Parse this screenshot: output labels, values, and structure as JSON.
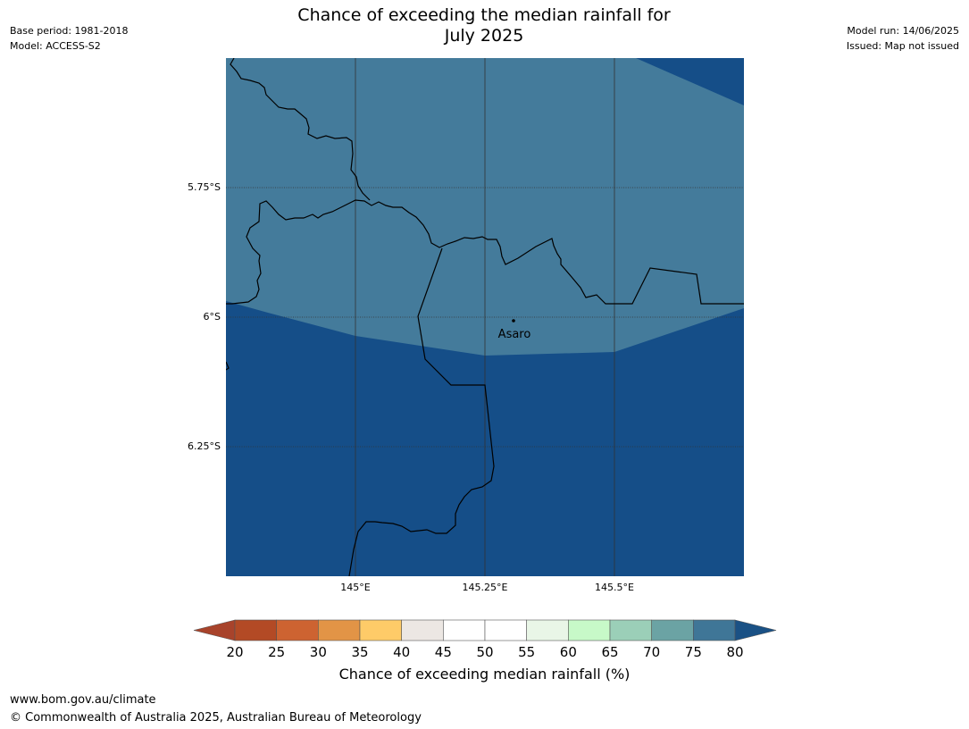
{
  "header": {
    "title_line1": "Chance of exceeding the median rainfall for",
    "title_line2": "July 2025",
    "base_period": "Base period: 1981-2018",
    "model": "Model: ACCESS-S2",
    "model_run": "Model run: 14/06/2025",
    "issued": "Issued: Map not issued"
  },
  "map": {
    "lat_labels": [
      "5.75°S",
      "6°S",
      "6.25°S"
    ],
    "lon_labels": [
      "145°E",
      "145.25°E",
      "145.5°E"
    ],
    "place_label": "Asaro",
    "colors": {
      "band_70_75": "#447b9b",
      "band_75_80": "#154e88"
    }
  },
  "colorbar": {
    "ticks": [
      "20",
      "25",
      "30",
      "35",
      "40",
      "45",
      "50",
      "55",
      "60",
      "65",
      "70",
      "75",
      "80"
    ],
    "colors": [
      "#a8432b",
      "#b34a25",
      "#cd6331",
      "#e29446",
      "#fecb68",
      "#ece7e3",
      "#ffffff",
      "#ffffff",
      "#e9f6e7",
      "#c7f9c8",
      "#9bcfb8",
      "#6ba3a4",
      "#3f7697"
    ],
    "under_color": "#a8432b",
    "over_color": "#1a5185",
    "label": "Chance of exceeding median rainfall (%)"
  },
  "footer": {
    "url": "www.bom.gov.au/climate",
    "copyright": "© Commonwealth of Australia 2025, Australian Bureau of Meteorology"
  }
}
